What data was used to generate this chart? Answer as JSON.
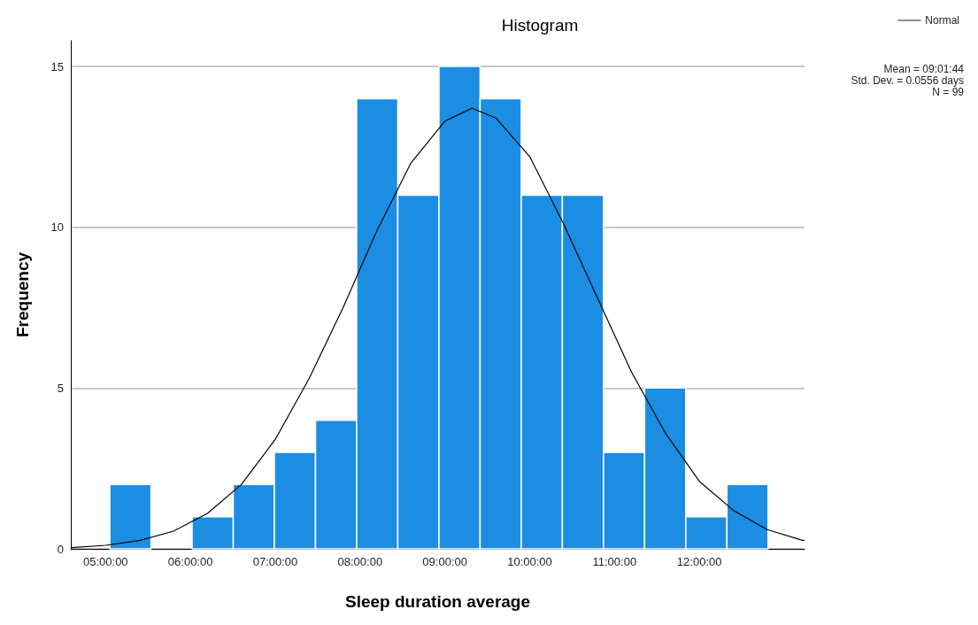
{
  "chart_data": {
    "type": "histogram",
    "title": "Histogram",
    "xlabel": "Sleep duration average",
    "ylabel": "Frequency",
    "bins": [
      5.05,
      5.535,
      6.02,
      6.505,
      6.99,
      7.475,
      7.96,
      8.445,
      8.93,
      9.415,
      9.9,
      10.385,
      10.87,
      11.355,
      11.84,
      12.325,
      12.81
    ],
    "values": [
      2,
      0,
      1,
      2,
      3,
      4,
      14,
      11,
      15,
      14,
      11,
      11,
      3,
      5,
      1,
      2
    ],
    "color": "#1b8ee3",
    "series": [
      {
        "type": "line",
        "name": "Normal",
        "color": "#000000",
        "x": [
          4.6,
          5.0,
          5.4,
          5.8,
          6.2,
          6.6,
          7.0,
          7.4,
          7.8,
          8.2,
          8.6,
          9.0,
          9.32,
          9.6,
          10.0,
          10.4,
          10.8,
          11.2,
          11.6,
          12.0,
          12.4,
          12.8,
          13.2,
          13.24
        ],
        "values": [
          0.04,
          0.11,
          0.26,
          0.55,
          1.1,
          2.0,
          3.4,
          5.3,
          7.5,
          9.9,
          12.0,
          13.3,
          13.7,
          13.4,
          12.2,
          10.1,
          7.8,
          5.5,
          3.6,
          2.1,
          1.2,
          0.6,
          0.28,
          0.26
        ]
      }
    ],
    "xlim": [
      4.59,
      13.24
    ],
    "xticks": [
      {
        "value": 5,
        "label": "05:00:00"
      },
      {
        "value": 6,
        "label": "06:00:00"
      },
      {
        "value": 7,
        "label": "07:00:00"
      },
      {
        "value": 8,
        "label": "08:00:00"
      },
      {
        "value": 9,
        "label": "09:00:00"
      },
      {
        "value": 10,
        "label": "10:00:00"
      },
      {
        "value": 11,
        "label": "11:00:00"
      },
      {
        "value": 12,
        "label": "12:00:00"
      }
    ],
    "ylim": [
      0,
      15.8
    ],
    "yticks": [
      0,
      5,
      10,
      15
    ],
    "grid": "y",
    "legend": "top right",
    "marker": "none",
    "annotations": [
      "Mean = 09:01:44",
      "Std. Dev. = 0.0556 days",
      "N = 99"
    ]
  }
}
